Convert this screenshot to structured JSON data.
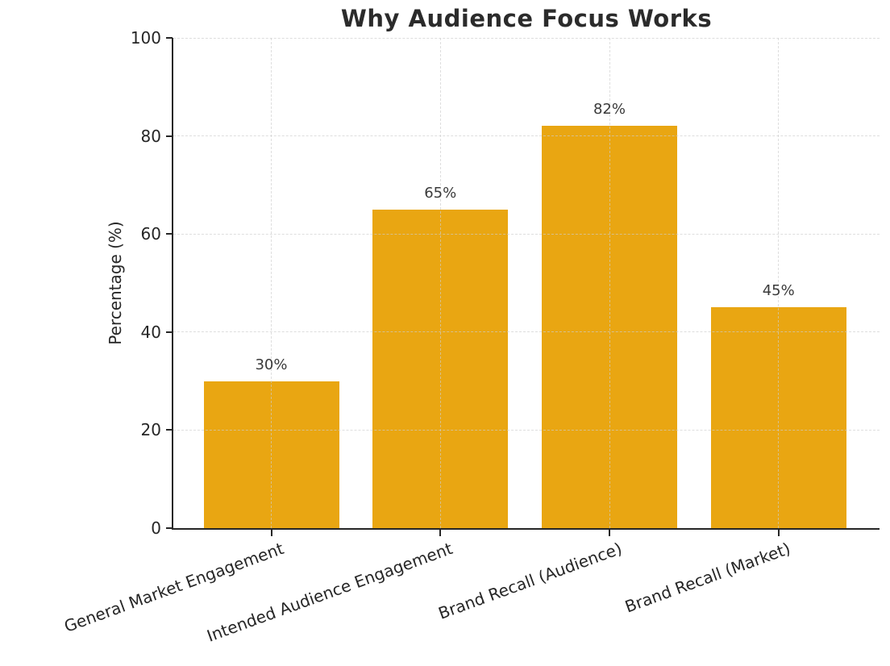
{
  "chart_data": {
    "type": "bar",
    "title": "Why Audience Focus Works",
    "categories": [
      "General Market Engagement",
      "Intended Audience Engagement",
      "Brand Recall (Audience)",
      "Brand Recall (Market)"
    ],
    "values": [
      30,
      65,
      82,
      45
    ],
    "value_labels": [
      "30%",
      "65%",
      "82%",
      "45%"
    ],
    "xlabel": "",
    "ylabel": "Percentage (%)",
    "ylim": [
      0,
      100
    ],
    "yticks": [
      0,
      20,
      40,
      60,
      80,
      100
    ],
    "grid": "both-dashed",
    "legend": "none",
    "bar_color": "#E9A612",
    "x_label_rotation_deg": 20
  },
  "colors": {
    "background": "#ffffff",
    "bar": "#E9A612",
    "axis": "#262626",
    "grid": "#cdcdcd",
    "title_text": "#2b2b2b",
    "tick_text": "#262626",
    "value_label_text": "#3a3a3a"
  }
}
